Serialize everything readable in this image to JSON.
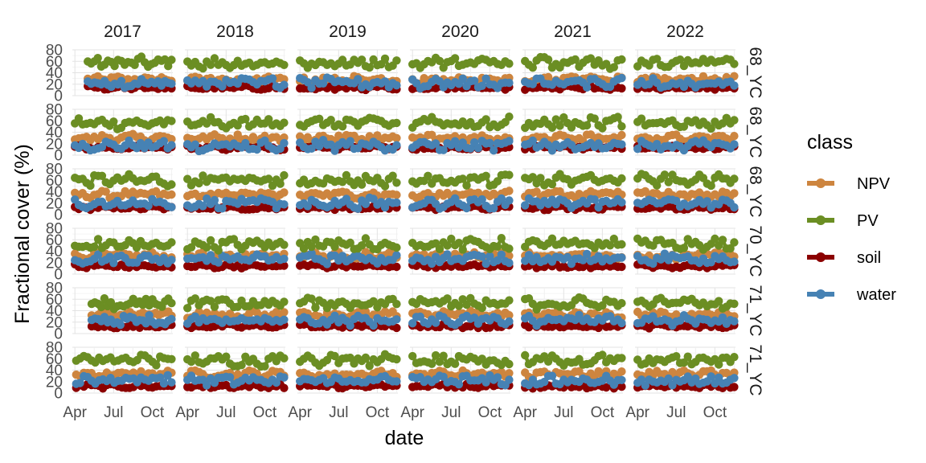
{
  "chart_data": {
    "type": "scatter",
    "xlabel": "date",
    "ylabel": "Fractional cover (%)",
    "ylim": [
      0,
      80
    ],
    "y_ticks": [
      0,
      20,
      40,
      60,
      80
    ],
    "x_ticks": [
      "Apr",
      "Jul",
      "Oct"
    ],
    "x_tick_months": [
      4,
      7,
      10
    ],
    "x_range_months": [
      3.8,
      11.6
    ],
    "columns": [
      "2017",
      "2018",
      "2019",
      "2020",
      "2021",
      "2022"
    ],
    "rows": [
      "68_YC",
      "68_YC",
      "68_YC",
      "70_YC",
      "71_YC",
      "71_YC"
    ],
    "grid": true,
    "lines_and_points": true,
    "legend": {
      "title": "class",
      "position": "right",
      "entries": [
        {
          "name": "NPV",
          "color": "#CD853F"
        },
        {
          "name": "PV",
          "color": "#6B8E23"
        },
        {
          "name": "soil",
          "color": "#8B0000"
        },
        {
          "name": "water",
          "color": "#4682B4"
        }
      ]
    },
    "class_typical_levels": {
      "NPV": [
        28,
        30,
        35,
        32,
        33,
        33
      ],
      "PV": [
        57,
        56,
        60,
        52,
        53,
        57
      ],
      "soil": [
        14,
        13,
        12,
        14,
        13,
        12
      ],
      "water": [
        22,
        17,
        20,
        27,
        23,
        22
      ]
    },
    "panel_start_months": {
      "2017": [
        5.0,
        4.0,
        4.0,
        4.0,
        5.3,
        4.1
      ],
      "2018": [
        4.0,
        4.0,
        4.0,
        4.0,
        4.0,
        4.0
      ],
      "2019": [
        4.0,
        4.0,
        4.0,
        4.0,
        4.0,
        4.0
      ],
      "2020": [
        4.0,
        4.0,
        4.0,
        4.0,
        4.0,
        4.0
      ],
      "2021": [
        4.0,
        4.0,
        4.0,
        4.0,
        4.0,
        4.0
      ],
      "2022": [
        4.0,
        4.0,
        4.0,
        4.0,
        4.0,
        4.0
      ]
    }
  }
}
